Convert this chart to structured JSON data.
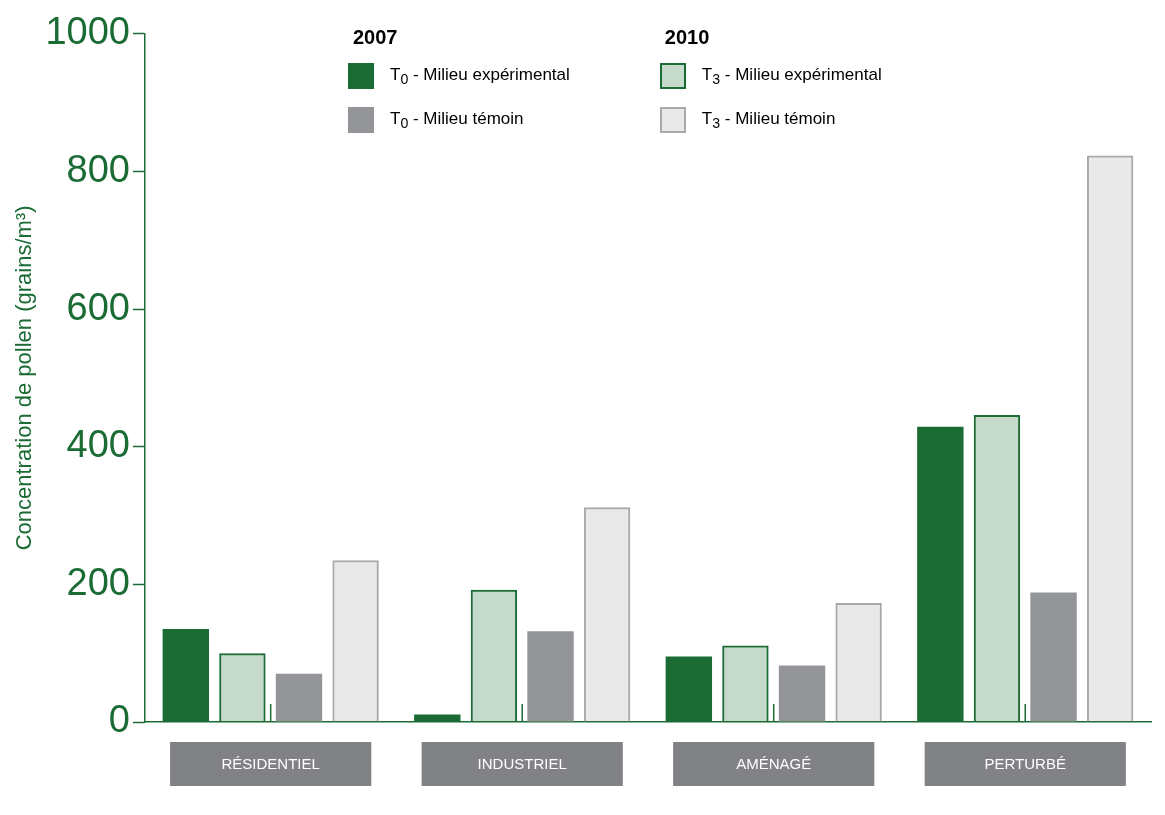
{
  "chart_data": {
    "type": "bar",
    "ylabel": "Concentration de pollen (grains/m³)",
    "categories": [
      "RÉSIDENTIEL",
      "INDUSTRIEL",
      "AMÉNAGÉ",
      "PERTURBÉ"
    ],
    "series": [
      {
        "name": "T$_{0}$ - Milieu expérimental",
        "color": "#1b6b35",
        "values": [
          135,
          11,
          95,
          429
        ]
      },
      {
        "name": "T$_{3}$ - Milieu expérimental",
        "color": "#1b6b35",
        "values": [
          100,
          192,
          111,
          446
        ]
      },
      {
        "name": "T$_{0}$ - Milieu témoin",
        "color": "#939598",
        "values": [
          70,
          132,
          82,
          188
        ]
      },
      {
        "name": "T$_{3}$ - Milieu témoin",
        "color": "#a7a9ac",
        "values": [
          235,
          312,
          173,
          823
        ]
      }
    ],
    "annotations": [
      "2007",
      "2010"
    ],
    "ylim": [
      0,
      1000
    ],
    "yticks": [
      0,
      200,
      400,
      600,
      800,
      1000
    ],
    "grid": false,
    "legend": "top"
  }
}
